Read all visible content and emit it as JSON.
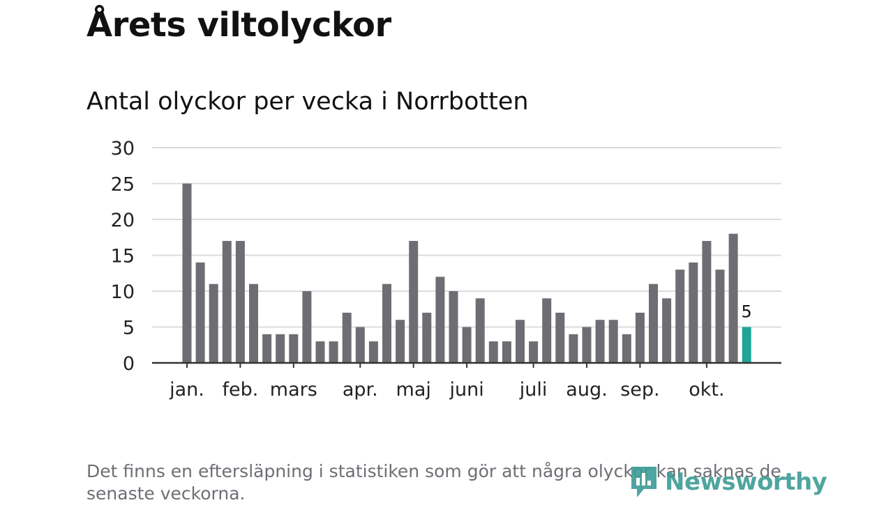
{
  "title": "Årets viltolyckor",
  "subtitle": "Antal olyckor per vecka i Norrbotten",
  "note": "Det finns en eftersläpning i statistiken som gör att några olyckor kan saknas de senaste veckorna.",
  "logo": {
    "text": "Newsworthy"
  },
  "colors": {
    "bar": "#6e6d73",
    "highlight": "#1fa595",
    "grid": "#dcdcdc",
    "axis": "#333333"
  },
  "chart_data": {
    "type": "bar",
    "title": "Antal olyckor per vecka i Norrbotten",
    "xlabel": "",
    "ylabel": "",
    "ylim": [
      0,
      30
    ],
    "yticks": [
      0,
      5,
      10,
      15,
      20,
      25,
      30
    ],
    "grid": true,
    "values": [
      25,
      14,
      11,
      17,
      17,
      11,
      4,
      4,
      4,
      10,
      3,
      3,
      7,
      5,
      3,
      11,
      6,
      17,
      7,
      12,
      10,
      5,
      9,
      3,
      3,
      6,
      3,
      9,
      7,
      4,
      5,
      6,
      6,
      4,
      7,
      11,
      9,
      13,
      14,
      17,
      13,
      18,
      5
    ],
    "highlight_index": 42,
    "highlight_label": "5",
    "month_labels": [
      {
        "label": "jan.",
        "week": 0
      },
      {
        "label": "feb.",
        "week": 4
      },
      {
        "label": "mars",
        "week": 8
      },
      {
        "label": "apr.",
        "week": 13
      },
      {
        "label": "maj",
        "week": 17
      },
      {
        "label": "juni",
        "week": 21
      },
      {
        "label": "juli",
        "week": 26
      },
      {
        "label": "aug.",
        "week": 30
      },
      {
        "label": "sep.",
        "week": 34
      },
      {
        "label": "okt.",
        "week": 39
      }
    ]
  }
}
